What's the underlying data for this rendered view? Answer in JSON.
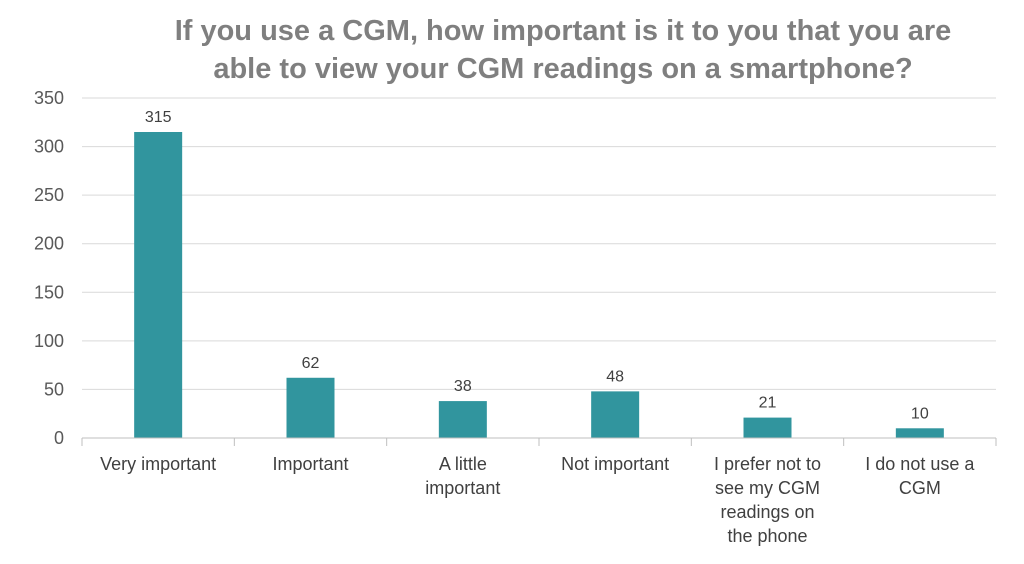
{
  "chart_data": {
    "type": "bar",
    "title_lines": [
      "If you use a CGM, how important is it to you that you are",
      "able to view your CGM readings on a smartphone?"
    ],
    "categories": [
      [
        "Very important"
      ],
      [
        "Important"
      ],
      [
        "A little",
        "important"
      ],
      [
        "Not important"
      ],
      [
        "I prefer not to",
        "see my CGM",
        "readings on",
        "the phone"
      ],
      [
        "I do not use a",
        "CGM"
      ]
    ],
    "values": [
      315,
      62,
      38,
      48,
      21,
      10
    ],
    "y_ticks": [
      0,
      50,
      100,
      150,
      200,
      250,
      300,
      350
    ],
    "ylim": [
      0,
      350
    ],
    "xlabel": "",
    "ylabel": "",
    "grid": true,
    "bar_color": "#31959e"
  }
}
